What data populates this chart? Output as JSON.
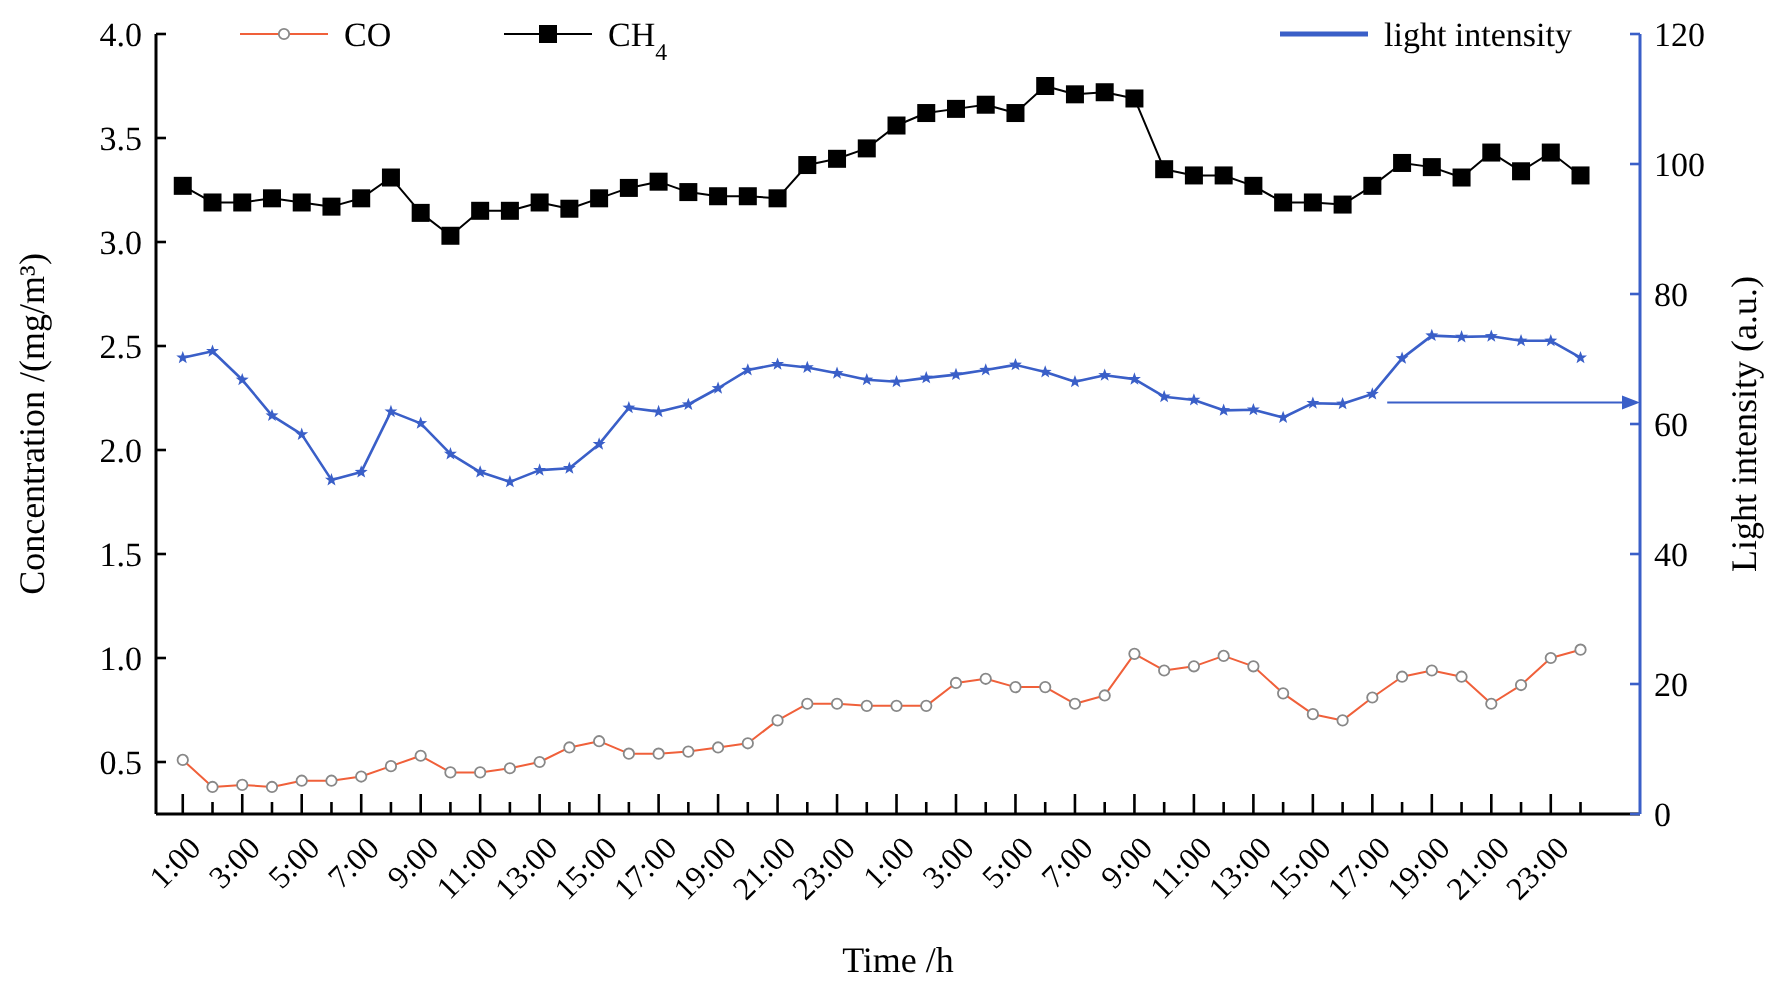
{
  "chart_data": {
    "type": "line",
    "xlabel": "Time /h",
    "ylabel": "Concentration /(mg/m³)",
    "y2label": "Light intensity (a.u.)",
    "categories": [
      "1:00",
      null,
      "3:00",
      null,
      "5:00",
      null,
      "7:00",
      null,
      "9:00",
      null,
      "11:00",
      null,
      "13:00",
      null,
      "15:00",
      null,
      "17:00",
      null,
      "19:00",
      null,
      "21:00",
      null,
      "23:00",
      null,
      "1:00",
      null,
      "3:00",
      null,
      "5:00",
      null,
      "7:00",
      null,
      "9:00",
      null,
      "11:00",
      null,
      "13:00",
      null,
      "15:00",
      null,
      "17:00",
      null,
      "19:00",
      null,
      "21:00",
      null,
      "23:00",
      null
    ],
    "ylim": [
      0.25,
      4.0
    ],
    "yticks": [
      0.5,
      {
        "value": 1,
        "label": "1.0"
      },
      1.5,
      {
        "value": 2,
        "label": "2.0"
      },
      2.5,
      {
        "value": 3,
        "label": "3.0"
      },
      3.5,
      {
        "value": 4,
        "label": "4.0"
      }
    ],
    "y2lim": [
      0,
      120
    ],
    "y2ticks": [
      0,
      20,
      40,
      60,
      80,
      100,
      120
    ],
    "legend": "top",
    "grid": false,
    "series": [
      {
        "name": "CO",
        "color": "#f0603a",
        "marker": "circle",
        "values": [
          0.51,
          0.38,
          0.39,
          0.38,
          0.41,
          0.41,
          0.43,
          0.48,
          0.53,
          0.45,
          0.45,
          0.47,
          0.5,
          0.57,
          0.6,
          0.54,
          0.54,
          0.55,
          0.57,
          0.59,
          0.7,
          0.78,
          0.78,
          0.77,
          0.77,
          0.77,
          0.88,
          0.9,
          0.86,
          0.86,
          0.78,
          0.82,
          1.02,
          0.94,
          0.96,
          1.01,
          0.96,
          0.83,
          0.73,
          0.7,
          0.81,
          0.91,
          0.94,
          0.91,
          0.78,
          0.87,
          1.0,
          1.04
        ]
      },
      {
        "name": "CH$_{4}$",
        "color": "#000000",
        "marker": "square",
        "values": [
          3.27,
          3.19,
          3.19,
          3.21,
          3.19,
          3.17,
          3.21,
          3.31,
          3.14,
          3.03,
          3.15,
          3.15,
          3.19,
          3.16,
          3.21,
          3.26,
          3.29,
          3.24,
          3.22,
          3.22,
          3.21,
          3.37,
          3.4,
          3.45,
          3.56,
          3.62,
          3.64,
          3.66,
          3.62,
          3.75,
          3.71,
          3.72,
          3.69,
          3.35,
          3.32,
          3.32,
          3.27,
          3.19,
          3.19,
          3.18,
          3.27,
          3.38,
          3.36,
          3.31,
          3.43,
          3.34,
          3.43,
          3.32
        ]
      },
      {
        "name": "light intensity",
        "color": "#3a5fc8",
        "marker": "star",
        "axis": "y2",
        "values": [
          70.2,
          71.2,
          66.8,
          61.3,
          58.4,
          51.4,
          52.6,
          61.9,
          60.1,
          55.4,
          52.6,
          51.1,
          52.9,
          53.2,
          56.9,
          62.5,
          61.9,
          63.0,
          65.5,
          68.3,
          69.2,
          68.7,
          67.8,
          66.8,
          66.5,
          67.1,
          67.6,
          68.3,
          69.1,
          68.0,
          66.5,
          67.5,
          66.9,
          64.2,
          63.7,
          62.1,
          62.2,
          61.0,
          63.2,
          63.1,
          64.6,
          70.1,
          73.6,
          73.4,
          73.5,
          72.8,
          72.8,
          70.2
        ]
      }
    ]
  }
}
